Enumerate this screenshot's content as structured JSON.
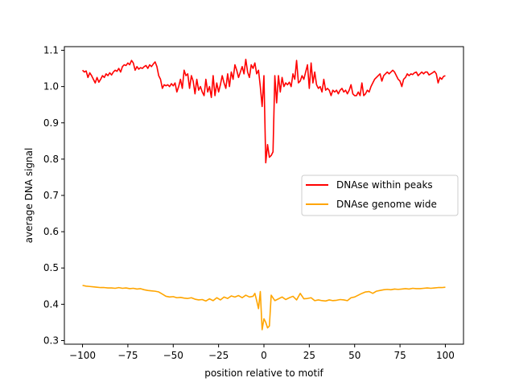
{
  "chart_data": {
    "type": "line",
    "title": "",
    "xlabel": "position relative to motif",
    "ylabel": "average DNA signal",
    "xlim": [
      -110,
      110
    ],
    "ylim": [
      0.29,
      1.11
    ],
    "xticks": [
      -100,
      -75,
      -50,
      -25,
      0,
      25,
      50,
      75,
      100
    ],
    "xtick_labels": [
      "−100",
      "−75",
      "−50",
      "−25",
      "0",
      "25",
      "50",
      "75",
      "100"
    ],
    "yticks": [
      0.3,
      0.4,
      0.5,
      0.6,
      0.7,
      0.8,
      0.9,
      1.0,
      1.1
    ],
    "ytick_labels": [
      "0.3",
      "0.4",
      "0.5",
      "0.6",
      "0.7",
      "0.8",
      "0.9",
      "1.0",
      "1.1"
    ],
    "grid": false,
    "legend_position": "center-right",
    "series": [
      {
        "name": "DNAse within peaks",
        "color": "#ff0000",
        "x": [
          -100,
          -99,
          -98,
          -97,
          -96,
          -95,
          -94,
          -93,
          -92,
          -91,
          -90,
          -89,
          -88,
          -87,
          -86,
          -85,
          -84,
          -83,
          -82,
          -81,
          -80,
          -79,
          -78,
          -77,
          -76,
          -75,
          -74,
          -73,
          -72,
          -71,
          -70,
          -69,
          -68,
          -67,
          -66,
          -65,
          -64,
          -63,
          -62,
          -61,
          -60,
          -59,
          -58,
          -57,
          -56,
          -55,
          -54,
          -53,
          -52,
          -51,
          -50,
          -49,
          -48,
          -47,
          -46,
          -45,
          -44,
          -43,
          -42,
          -41,
          -40,
          -39,
          -38,
          -37,
          -36,
          -35,
          -34,
          -33,
          -32,
          -31,
          -30,
          -29,
          -28,
          -27,
          -26,
          -25,
          -24,
          -23,
          -22,
          -21,
          -20,
          -19,
          -18,
          -17,
          -16,
          -15,
          -14,
          -13,
          -12,
          -11,
          -10,
          -9,
          -8,
          -7,
          -6,
          -5,
          -4,
          -3,
          -2,
          -1,
          0,
          1,
          2,
          3,
          4,
          5,
          6,
          7,
          8,
          9,
          10,
          11,
          12,
          13,
          14,
          15,
          16,
          17,
          18,
          19,
          20,
          21,
          22,
          23,
          24,
          25,
          26,
          27,
          28,
          29,
          30,
          31,
          32,
          33,
          34,
          35,
          36,
          37,
          38,
          39,
          40,
          41,
          42,
          43,
          44,
          45,
          46,
          47,
          48,
          49,
          50,
          51,
          52,
          53,
          54,
          55,
          56,
          57,
          58,
          59,
          60,
          61,
          62,
          63,
          64,
          65,
          66,
          67,
          68,
          69,
          70,
          71,
          72,
          73,
          74,
          75,
          76,
          77,
          78,
          79,
          80,
          81,
          82,
          83,
          84,
          85,
          86,
          87,
          88,
          89,
          90,
          91,
          92,
          93,
          94,
          95,
          96,
          97,
          98,
          99,
          100
        ],
        "y": [
          1.045,
          1.04,
          1.043,
          1.025,
          1.038,
          1.03,
          1.02,
          1.01,
          1.025,
          1.012,
          1.02,
          1.03,
          1.025,
          1.035,
          1.03,
          1.038,
          1.032,
          1.04,
          1.045,
          1.042,
          1.05,
          1.04,
          1.055,
          1.06,
          1.058,
          1.065,
          1.06,
          1.072,
          1.065,
          1.045,
          1.055,
          1.048,
          1.052,
          1.05,
          1.055,
          1.058,
          1.05,
          1.06,
          1.055,
          1.062,
          1.068,
          1.055,
          1.03,
          1.02,
          0.995,
          1.005,
          1.002,
          1.005,
          1.0,
          1.008,
          1.002,
          1.01,
          0.985,
          1.0,
          1.02,
          0.995,
          1.045,
          1.03,
          1.035,
          0.995,
          1.03,
          1.015,
          0.98,
          1.02,
          0.99,
          1.0,
          0.985,
          0.975,
          1.02,
          0.985,
          1.0,
          0.97,
          1.03,
          0.975,
          1.01,
          0.985,
          1.005,
          1.03,
          1.01,
          0.995,
          1.035,
          1.0,
          1.04,
          1.02,
          1.06,
          1.045,
          1.025,
          1.04,
          1.055,
          1.035,
          1.075,
          1.04,
          1.025,
          1.06,
          1.05,
          1.065,
          1.035,
          1.045,
          1.0,
          0.945,
          1.03,
          0.79,
          0.84,
          0.805,
          0.81,
          0.82,
          1.03,
          0.955,
          1.03,
          0.985,
          1.025,
          1.0,
          1.01,
          1.005,
          1.012,
          1.0,
          1.035,
          1.02,
          1.072,
          1.01,
          1.015,
          1.03,
          1.02,
          1.04,
          1.06,
          0.995,
          1.065,
          1.01,
          1.04,
          1.005,
          0.995,
          1.0,
          0.985,
          1.02,
          0.99,
          0.995,
          0.99,
          0.975,
          0.99,
          0.985,
          0.99,
          0.98,
          0.99,
          0.995,
          0.985,
          0.99,
          0.98,
          0.99,
          1.005,
          0.98,
          0.975,
          0.975,
          0.985,
          0.975,
          1.01,
          0.975,
          0.98,
          0.99,
          0.985,
          1.0,
          1.01,
          1.02,
          1.025,
          1.03,
          1.035,
          1.015,
          1.03,
          1.035,
          1.04,
          1.035,
          1.04,
          1.045,
          1.04,
          1.03,
          1.02,
          1.015,
          1.0,
          1.02,
          1.025,
          1.035,
          1.03,
          1.035,
          1.033,
          1.038,
          1.04,
          1.03,
          1.035,
          1.04,
          1.035,
          1.04,
          1.04,
          1.032,
          1.035,
          1.038,
          1.042,
          1.035,
          1.01,
          1.025,
          1.02,
          1.028,
          1.03
        ]
      },
      {
        "name": "DNAse genome wide",
        "color": "#ffa500",
        "x": [
          -100,
          -98,
          -96,
          -94,
          -92,
          -90,
          -88,
          -86,
          -84,
          -82,
          -80,
          -78,
          -76,
          -74,
          -72,
          -70,
          -68,
          -66,
          -64,
          -62,
          -60,
          -58,
          -56,
          -54,
          -52,
          -50,
          -48,
          -46,
          -44,
          -42,
          -40,
          -38,
          -36,
          -34,
          -32,
          -30,
          -28,
          -26,
          -24,
          -22,
          -20,
          -18,
          -16,
          -14,
          -12,
          -10,
          -8,
          -6,
          -5,
          -4,
          -3,
          -2,
          -1,
          0,
          1,
          2,
          3,
          4,
          6,
          8,
          10,
          12,
          14,
          16,
          18,
          20,
          22,
          24,
          26,
          28,
          30,
          32,
          34,
          36,
          38,
          40,
          42,
          44,
          46,
          48,
          50,
          52,
          54,
          56,
          58,
          60,
          62,
          64,
          66,
          68,
          70,
          72,
          74,
          76,
          78,
          80,
          82,
          84,
          86,
          88,
          90,
          92,
          94,
          96,
          98,
          100
        ],
        "y": [
          0.452,
          0.45,
          0.449,
          0.448,
          0.447,
          0.446,
          0.446,
          0.445,
          0.445,
          0.444,
          0.446,
          0.444,
          0.445,
          0.443,
          0.444,
          0.442,
          0.443,
          0.44,
          0.438,
          0.437,
          0.436,
          0.434,
          0.428,
          0.422,
          0.42,
          0.421,
          0.418,
          0.419,
          0.417,
          0.416,
          0.418,
          0.414,
          0.412,
          0.413,
          0.409,
          0.415,
          0.41,
          0.418,
          0.412,
          0.42,
          0.416,
          0.423,
          0.42,
          0.424,
          0.418,
          0.425,
          0.42,
          0.422,
          0.43,
          0.41,
          0.388,
          0.435,
          0.33,
          0.36,
          0.35,
          0.335,
          0.34,
          0.425,
          0.41,
          0.415,
          0.42,
          0.413,
          0.418,
          0.422,
          0.412,
          0.43,
          0.415,
          0.416,
          0.418,
          0.41,
          0.412,
          0.41,
          0.409,
          0.412,
          0.41,
          0.411,
          0.413,
          0.412,
          0.41,
          0.418,
          0.42,
          0.425,
          0.43,
          0.434,
          0.435,
          0.43,
          0.436,
          0.438,
          0.44,
          0.441,
          0.44,
          0.442,
          0.441,
          0.442,
          0.443,
          0.442,
          0.444,
          0.443,
          0.443,
          0.444,
          0.445,
          0.444,
          0.445,
          0.446,
          0.446,
          0.447
        ]
      }
    ]
  }
}
